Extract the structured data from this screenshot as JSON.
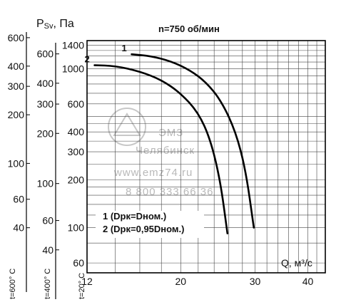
{
  "chart_data": {
    "type": "line",
    "title": "n=750 об/мин",
    "ylabel_prefix": "P",
    "ylabel_sub": "Sv",
    "ylabel_unit": ", Па",
    "xlabel": "Q, м³/с",
    "x_scale": "log",
    "y_scale": "log",
    "xlim": [
      12,
      44
    ],
    "ylim": [
      52,
      1500
    ],
    "x_ticks": [
      12,
      20,
      30,
      40
    ],
    "main_axis": {
      "temperature_label": "t=20° C",
      "ticks": [
        60,
        100,
        200,
        300,
        400,
        600,
        1000,
        1400
      ],
      "extra_ticks_unlabeled": [
        80,
        120,
        140,
        160,
        180,
        250,
        350,
        450,
        500,
        700,
        800,
        900,
        1100,
        1200,
        1300
      ]
    },
    "secondary_axes": [
      {
        "temperature_label": "t=400° C",
        "ticks": [
          40,
          60,
          100,
          200,
          300,
          400,
          600
        ]
      },
      {
        "temperature_label": "t=600° C",
        "ticks": [
          40,
          60,
          100,
          200,
          300,
          400,
          600
        ]
      }
    ],
    "series": [
      {
        "name": "1",
        "legend": "1 (Dрк=Dном.)",
        "x": [
          15.3,
          17.0,
          19.0,
          21.0,
          23.0,
          25.0,
          27.0,
          28.5,
          29.8
        ],
        "y": [
          1230,
          1200,
          1110,
          980,
          820,
          620,
          400,
          230,
          100
        ]
      },
      {
        "name": "2",
        "legend": "2 (Dрк=0,95Dном.)",
        "x": [
          12.5,
          14.0,
          16.0,
          18.0,
          20.0,
          22.0,
          23.5,
          24.8,
          25.8
        ],
        "y": [
          1050,
          1040,
          960,
          850,
          700,
          530,
          360,
          200,
          92
        ]
      }
    ]
  },
  "watermark": {
    "line1": "ЭМЗ",
    "line2": "Челябинск",
    "line3": "www.emz74.ru",
    "line4": "8 800 333 66 36"
  }
}
